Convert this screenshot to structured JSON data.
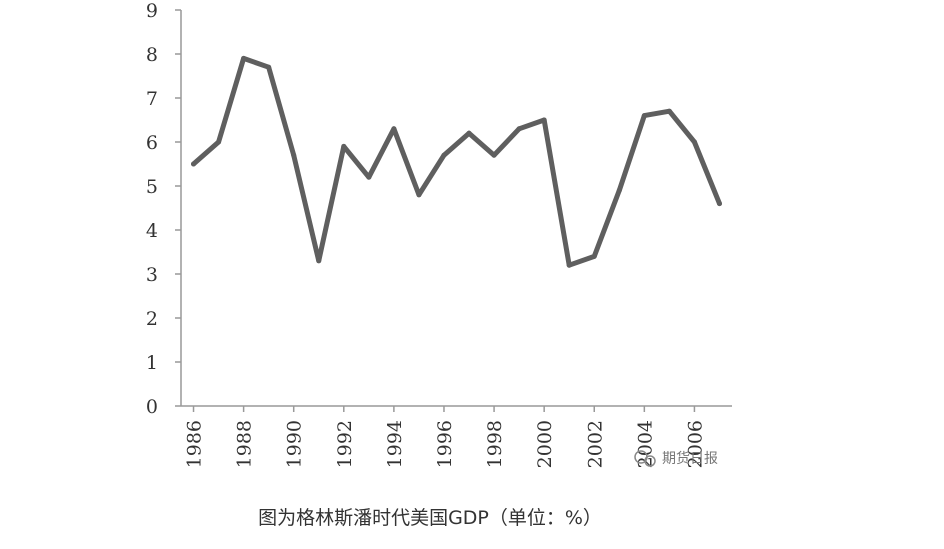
{
  "chart_data": {
    "type": "line",
    "title": "",
    "xlabel": "",
    "ylabel": "",
    "x": [
      1986,
      1987,
      1988,
      1989,
      1990,
      1991,
      1992,
      1993,
      1994,
      1995,
      1996,
      1997,
      1998,
      1999,
      2000,
      2001,
      2002,
      2003,
      2004,
      2005,
      2006,
      2007
    ],
    "series": [
      {
        "values": [
          5.5,
          6.0,
          7.9,
          7.7,
          5.7,
          3.3,
          5.9,
          5.2,
          6.3,
          4.8,
          5.7,
          6.2,
          5.7,
          6.3,
          6.5,
          3.2,
          3.4,
          4.9,
          6.6,
          6.7,
          6.0,
          4.6
        ]
      }
    ],
    "x_tick_labels": [
      "1986",
      "1988",
      "1990",
      "1992",
      "1994",
      "1996",
      "1998",
      "2000",
      "2002",
      "2004",
      "2006"
    ],
    "y_tick_labels": [
      "0",
      "1",
      "2",
      "3",
      "4",
      "5",
      "6",
      "7",
      "8",
      "9"
    ],
    "ylim": [
      0,
      9
    ],
    "xlim": [
      1985.5,
      2007.5
    ],
    "grid": false,
    "line_color": "#5f5f5f"
  },
  "watermark": "期货日报",
  "caption": "图为格林斯潘时代美国GDP（单位：%）"
}
